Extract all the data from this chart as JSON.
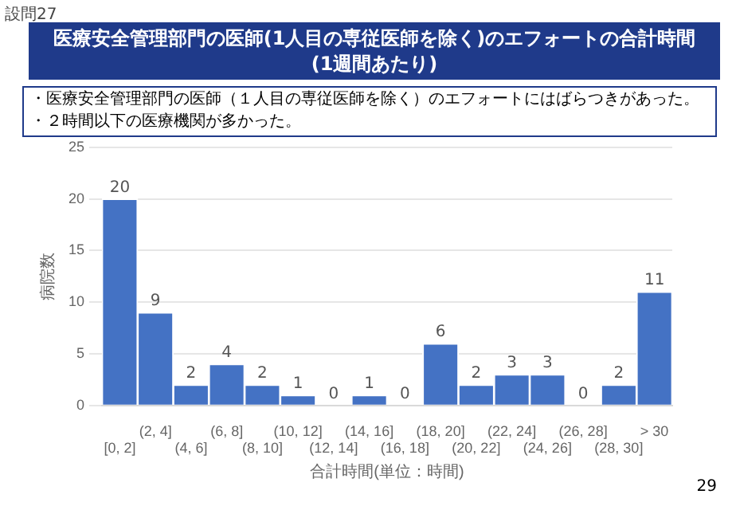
{
  "chart_data": {
    "type": "bar",
    "title": "医療安全管理部門の医師(1人目の専従医師を除く)のエフォートの合計時間\n(1週間あたり)",
    "xlabel": "合計時間(単位：時間)",
    "ylabel": "病院数",
    "annotations": [
      "設問27",
      "・医療安全管理部門の医師（１人目の専従医師を除く）のエフォートにはばらつきがあった。",
      "・２時間以下の医療機関が多かった。",
      "29"
    ],
    "categories": [
      "[0, 2]",
      "(2, 4]",
      "(4, 6]",
      "(6, 8]",
      "(8, 10]",
      "(10, 12]",
      "(12, 14]",
      "(14, 16]",
      "(16, 18]",
      "(18, 20]",
      "(20, 22]",
      "(22, 24]",
      "(24, 26]",
      "(26, 28]",
      "(28, 30]",
      "> 30"
    ],
    "values": [
      20,
      9,
      2,
      4,
      2,
      1,
      0,
      1,
      0,
      6,
      2,
      3,
      3,
      0,
      2,
      11
    ],
    "color": "#4472c4",
    "ylim": [
      0,
      25
    ],
    "yticks": [
      0,
      5,
      10,
      15,
      20,
      25
    ],
    "grid": "y",
    "data_labels": true
  }
}
